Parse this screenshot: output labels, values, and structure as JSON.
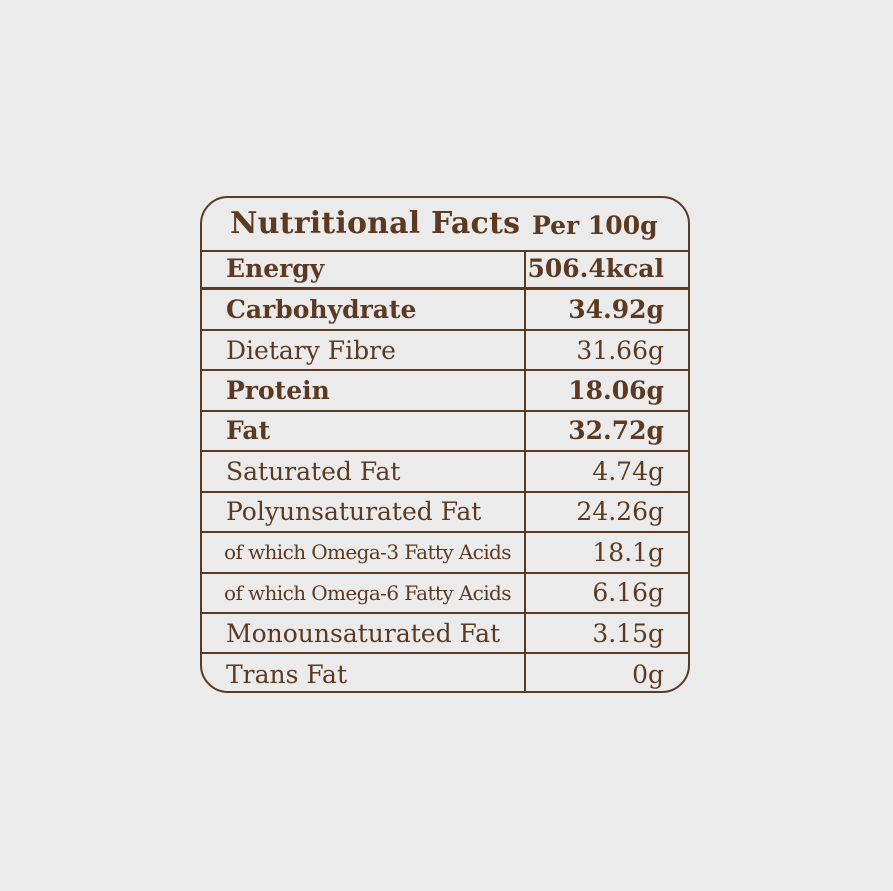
{
  "header": {
    "title": "Nutritional Facts",
    "per": "Per 100g"
  },
  "rows": [
    {
      "name": "Energy",
      "value": "506.4kcal",
      "bold": true
    },
    {
      "name": "Carbohydrate",
      "value": "34.92g",
      "bold": true
    },
    {
      "name": "Dietary Fibre",
      "value": "31.66g",
      "bold": false
    },
    {
      "name": "Protein",
      "value": "18.06g",
      "bold": true
    },
    {
      "name": "Fat",
      "value": "32.72g",
      "bold": true
    },
    {
      "name": "Saturated Fat",
      "value": "4.74g",
      "bold": false
    },
    {
      "name": "Polyunsaturated Fat",
      "value": "24.26g",
      "bold": false
    },
    {
      "name": "of which Omega-3 Fatty Acids",
      "value": "18.1g",
      "bold": false
    },
    {
      "name": "of which Omega-6 Fatty Acids",
      "value": "6.16g",
      "bold": false
    },
    {
      "name": "Monounsaturated Fat",
      "value": "3.15g",
      "bold": false
    },
    {
      "name": "Trans Fat",
      "value": "0g",
      "bold": false
    }
  ],
  "colors": {
    "ink": "#5b3a21",
    "background": "#ecebeb"
  }
}
